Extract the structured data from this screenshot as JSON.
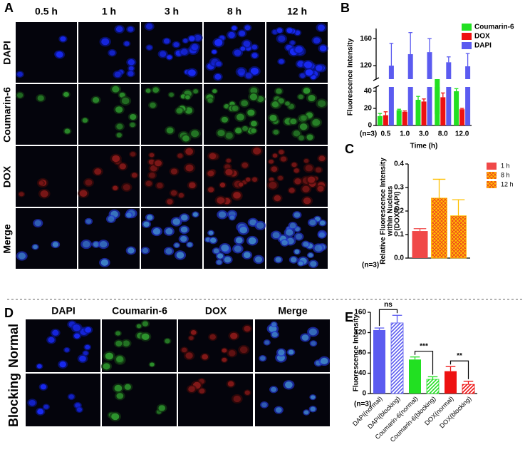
{
  "panel_labels": [
    "A",
    "B",
    "C",
    "D",
    "E"
  ],
  "panel_a": {
    "columns": [
      "0.5 h",
      "1 h",
      "3 h",
      "8 h",
      "12 h"
    ],
    "rows": [
      "DAPI",
      "Coumarin-6",
      "DOX",
      "Merge"
    ]
  },
  "panel_d": {
    "columns": [
      "DAPI",
      "Coumarin-6",
      "DOX",
      "Merge"
    ],
    "rows": [
      "Normal",
      "Blocking"
    ]
  },
  "chart_data": [
    {
      "type": "bar",
      "ylabel": [
        "Fluorescence Intensity"
      ],
      "xlabel": "Time (h)",
      "note": "(n=3)",
      "categories": [
        "0.5",
        "1.0",
        "3.0",
        "8.0",
        "12.0"
      ],
      "series": [
        {
          "name": "Coumarin-6",
          "color": "#22e022",
          "values": [
            11,
            18,
            30,
            48,
            40
          ],
          "errors": [
            3,
            1,
            4,
            5,
            3
          ]
        },
        {
          "name": "DOX",
          "color": "#ee1111",
          "values": [
            12,
            16,
            28,
            33,
            19
          ],
          "errors": [
            4,
            1,
            3,
            5,
            1
          ]
        },
        {
          "name": "DAPI",
          "color": "#5b5bf0",
          "values": [
            120,
            137,
            140,
            125,
            119
          ],
          "errors": [
            33,
            32,
            20,
            8,
            19
          ]
        }
      ],
      "ylim": [
        0,
        45
      ],
      "yticks": [
        0,
        20,
        40
      ],
      "ylim_upper": [
        100,
        175
      ],
      "yticks_upper": [
        120,
        160
      ]
    },
    {
      "type": "bar",
      "ylabel": [
        "Relative Fluorescence Intensity",
        "within Nucleus",
        "(DOX/DAPI)"
      ],
      "note": "(n=3)",
      "series": [
        {
          "name": "1 h",
          "color": "#f04848",
          "values": [
            0.115
          ],
          "errors": [
            0.01
          ]
        },
        {
          "name": "8 h",
          "color": "#ffc000",
          "pattern": "crosshatch",
          "values": [
            0.255
          ],
          "errors": [
            0.08
          ]
        },
        {
          "name": "12 h",
          "color": "#ffc000",
          "pattern": "crosshatch",
          "values": [
            0.18
          ],
          "errors": [
            0.068
          ]
        }
      ],
      "ylim": [
        0,
        0.4
      ],
      "yticks": [
        {
          "value": 0,
          "label": "0.0"
        },
        0.1,
        0.2,
        0.3,
        0.4
      ]
    },
    {
      "type": "bar",
      "ylabel": [
        "Fluorescence Intensity"
      ],
      "note": "(n=3)",
      "categories": [
        "DAPI(normal)",
        "DAPI(blocking)",
        "Coumarin-6(normal)",
        "Coumarin-6(blocking)",
        "DOX(normal)",
        "DOX(blocking)"
      ],
      "values": [
        125,
        139,
        67,
        28,
        44,
        18
      ],
      "errors": [
        4,
        15,
        5,
        5,
        9,
        6
      ],
      "colors": [
        "#5b5bf0",
        "#5b5bf0",
        "#22e022",
        "#22e022",
        "#ee1111",
        "#ee1111"
      ],
      "patterns": [
        "solid",
        "hatch",
        "solid",
        "hatch",
        "solid",
        "hatch"
      ],
      "annotations": [
        "ns",
        "***",
        "**"
      ],
      "ylim": [
        0,
        160
      ],
      "yticks": [
        0,
        40,
        80,
        120,
        160
      ]
    }
  ]
}
